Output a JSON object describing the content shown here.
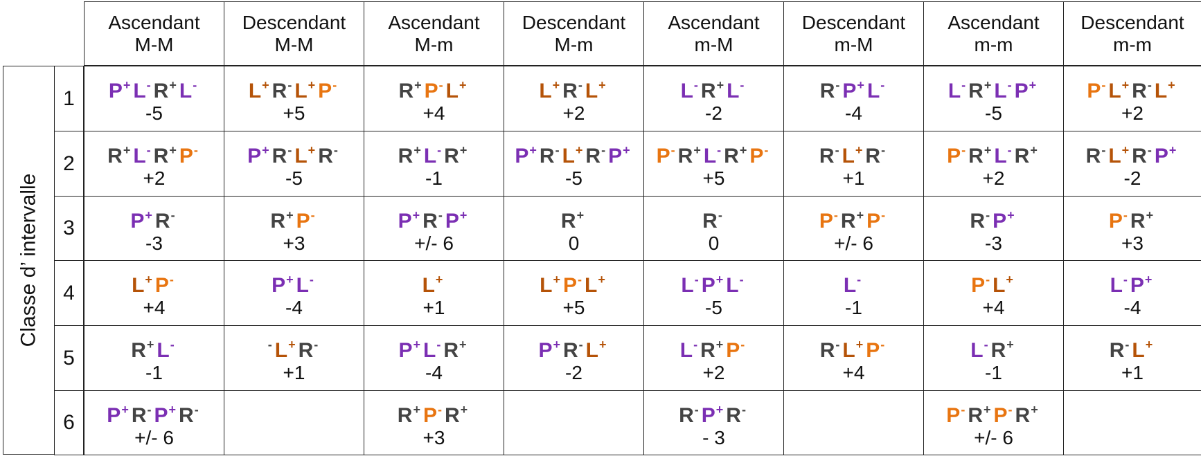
{
  "axis_label": "Classe d’ intervalle",
  "colors": {
    "P": "#7b2fb3",
    "L": "#b55308",
    "Lv": "#7b2fb3",
    "R": "#444444",
    "Po": "#e87511"
  },
  "headers": [
    {
      "line1": "Ascendant",
      "line2": "M-M"
    },
    {
      "line1": "Descendant",
      "line2": "M-M"
    },
    {
      "line1": "Ascendant",
      "line2": "M-m"
    },
    {
      "line1": "Descendant",
      "line2": "M-m"
    },
    {
      "line1": "Ascendant",
      "line2": "m-M"
    },
    {
      "line1": "Descendant",
      "line2": "m-M"
    },
    {
      "line1": "Ascendant",
      "line2": "m-m"
    },
    {
      "line1": "Descendant",
      "line2": "m-m"
    }
  ],
  "rows": [
    {
      "num": "1",
      "cells": [
        {
          "seq": [
            [
              "P",
              "+",
              "p"
            ],
            [
              "L",
              "-",
              "p"
            ],
            [
              "R",
              "+",
              "g"
            ],
            [
              "L",
              "-",
              "p"
            ]
          ],
          "val": "-5"
        },
        {
          "seq": [
            [
              "L",
              "+",
              "b"
            ],
            [
              "R",
              "-",
              "g"
            ],
            [
              "L",
              "+",
              "b"
            ],
            [
              "P",
              "-",
              "o"
            ]
          ],
          "val": "+5"
        },
        {
          "seq": [
            [
              "R",
              "+",
              "g"
            ],
            [
              "P",
              "-",
              "o"
            ],
            [
              "L",
              "+",
              "b"
            ]
          ],
          "val": "+4"
        },
        {
          "seq": [
            [
              "L",
              "+",
              "b"
            ],
            [
              "R",
              "-",
              "g"
            ],
            [
              "L",
              "+",
              "b"
            ]
          ],
          "val": "+2"
        },
        {
          "seq": [
            [
              "L",
              "-",
              "p"
            ],
            [
              "R",
              "+",
              "g"
            ],
            [
              "L",
              "-",
              "p"
            ]
          ],
          "val": "-2"
        },
        {
          "seq": [
            [
              "R",
              "-",
              "g"
            ],
            [
              "P",
              "+",
              "p"
            ],
            [
              "L",
              "-",
              "p"
            ]
          ],
          "val": "-4"
        },
        {
          "seq": [
            [
              "L",
              "-",
              "p"
            ],
            [
              "R",
              "+",
              "g"
            ],
            [
              "L",
              "-",
              "p"
            ],
            [
              "P",
              "+",
              "p"
            ]
          ],
          "val": "-5"
        },
        {
          "seq": [
            [
              "P",
              "-",
              "o"
            ],
            [
              "L",
              "+",
              "b"
            ],
            [
              "R",
              "-",
              "g"
            ],
            [
              "L",
              "+",
              "b"
            ]
          ],
          "val": "+2"
        }
      ]
    },
    {
      "num": "2",
      "cells": [
        {
          "seq": [
            [
              "R",
              "+",
              "g"
            ],
            [
              "L",
              "-",
              "p"
            ],
            [
              "R",
              "+",
              "g"
            ],
            [
              "P",
              "-",
              "o"
            ]
          ],
          "val": "+2"
        },
        {
          "seq": [
            [
              "P",
              "+",
              "p"
            ],
            [
              "R",
              "-",
              "g"
            ],
            [
              "L",
              "+",
              "b"
            ],
            [
              "R",
              "-",
              "g"
            ]
          ],
          "val": "-5"
        },
        {
          "seq": [
            [
              "R",
              "+",
              "g"
            ],
            [
              "L",
              "-",
              "p"
            ],
            [
              "R",
              "+",
              "g"
            ]
          ],
          "val": "-1"
        },
        {
          "seq": [
            [
              "P",
              "+",
              "p"
            ],
            [
              "R",
              "-",
              "g"
            ],
            [
              "L",
              "+",
              "b"
            ],
            [
              "R",
              "-",
              "g"
            ],
            [
              "P",
              "+",
              "p"
            ]
          ],
          "val": "-5"
        },
        {
          "seq": [
            [
              "P",
              "-",
              "o"
            ],
            [
              "R",
              "+",
              "g"
            ],
            [
              "L",
              "-",
              "p"
            ],
            [
              "R",
              "+",
              "g"
            ],
            [
              "P",
              "-",
              "o"
            ]
          ],
          "val": "+5"
        },
        {
          "seq": [
            [
              "R",
              "-",
              "g"
            ],
            [
              "L",
              "+",
              "b"
            ],
            [
              "R",
              "-",
              "g"
            ]
          ],
          "val": "+1"
        },
        {
          "seq": [
            [
              "P",
              "-",
              "o"
            ],
            [
              "R",
              "+",
              "g"
            ],
            [
              "L",
              "-",
              "p"
            ],
            [
              "R",
              "+",
              "g"
            ]
          ],
          "val": "+2"
        },
        {
          "seq": [
            [
              "R",
              "-",
              "g"
            ],
            [
              "L",
              "+",
              "b"
            ],
            [
              "R",
              "-",
              "g"
            ],
            [
              "P",
              "+",
              "p"
            ]
          ],
          "val": "-2"
        }
      ]
    },
    {
      "num": "3",
      "cells": [
        {
          "seq": [
            [
              "P",
              "+",
              "p"
            ],
            [
              "R",
              "-",
              "g"
            ]
          ],
          "val": "-3"
        },
        {
          "seq": [
            [
              "R",
              "+",
              "g"
            ],
            [
              "P",
              "-",
              "o"
            ]
          ],
          "val": "+3"
        },
        {
          "seq": [
            [
              "P",
              "+",
              "p"
            ],
            [
              "R",
              "-",
              "g"
            ],
            [
              "P",
              "+",
              "p"
            ]
          ],
          "val": "+/- 6"
        },
        {
          "seq": [
            [
              "R",
              "+",
              "g"
            ]
          ],
          "val": "0"
        },
        {
          "seq": [
            [
              "R",
              "-",
              "g"
            ]
          ],
          "val": "0"
        },
        {
          "seq": [
            [
              "P",
              "-",
              "o"
            ],
            [
              "R",
              "+",
              "g"
            ],
            [
              "P",
              "-",
              "o"
            ]
          ],
          "val": "+/- 6"
        },
        {
          "seq": [
            [
              "R",
              "-",
              "g"
            ],
            [
              "P",
              "+",
              "p"
            ]
          ],
          "val": "-3"
        },
        {
          "seq": [
            [
              "P",
              "-",
              "o"
            ],
            [
              "R",
              "+",
              "g"
            ]
          ],
          "val": "+3"
        }
      ]
    },
    {
      "num": "4",
      "cells": [
        {
          "seq": [
            [
              "L",
              "+",
              "b"
            ],
            [
              "P",
              "-",
              "o"
            ]
          ],
          "val": "+4"
        },
        {
          "seq": [
            [
              "P",
              "+",
              "p"
            ],
            [
              "L",
              "-",
              "p"
            ]
          ],
          "val": "-4"
        },
        {
          "seq": [
            [
              "L",
              "+",
              "b"
            ]
          ],
          "val": "+1"
        },
        {
          "seq": [
            [
              "L",
              "+",
              "b"
            ],
            [
              "P",
              "-",
              "o"
            ],
            [
              "L",
              "+",
              "b"
            ]
          ],
          "val": "+5"
        },
        {
          "seq": [
            [
              "L",
              "-",
              "p"
            ],
            [
              "P",
              "+",
              "p"
            ],
            [
              "L",
              "-",
              "p"
            ]
          ],
          "val": "-5"
        },
        {
          "seq": [
            [
              "L",
              "-",
              "p"
            ]
          ],
          "val": "-1"
        },
        {
          "seq": [
            [
              "P",
              "-",
              "o"
            ],
            [
              "L",
              "+",
              "b"
            ]
          ],
          "val": "+4"
        },
        {
          "seq": [
            [
              "L",
              "-",
              "p"
            ],
            [
              "P",
              "+",
              "p"
            ]
          ],
          "val": "-4"
        }
      ]
    },
    {
      "num": "5",
      "cells": [
        {
          "seq": [
            [
              "R",
              "+",
              "g"
            ],
            [
              "L",
              "-",
              "p"
            ]
          ],
          "val": "-1"
        },
        {
          "seq": [
            [
              "",
              "-",
              "g"
            ],
            [
              "L",
              "+",
              "b"
            ],
            [
              "R",
              "-",
              "g"
            ]
          ],
          "val": "+1"
        },
        {
          "seq": [
            [
              "P",
              "+",
              "p"
            ],
            [
              "L",
              "-",
              "p"
            ],
            [
              "R",
              "+",
              "g"
            ]
          ],
          "val": "-4"
        },
        {
          "seq": [
            [
              "P",
              "+",
              "p"
            ],
            [
              "R",
              "-",
              "g"
            ],
            [
              "L",
              "+",
              "b"
            ]
          ],
          "val": "-2"
        },
        {
          "seq": [
            [
              "L",
              "-",
              "p"
            ],
            [
              "R",
              "+",
              "g"
            ],
            [
              "P",
              "-",
              "o"
            ]
          ],
          "val": "+2"
        },
        {
          "seq": [
            [
              "R",
              "-",
              "g"
            ],
            [
              "L",
              "+",
              "b"
            ],
            [
              "P",
              "-",
              "o"
            ]
          ],
          "val": "+4"
        },
        {
          "seq": [
            [
              "L",
              "-",
              "p"
            ],
            [
              "R",
              "+",
              "g"
            ]
          ],
          "val": "-1"
        },
        {
          "seq": [
            [
              "R",
              "-",
              "g"
            ],
            [
              "L",
              "+",
              "b"
            ]
          ],
          "val": "+1"
        }
      ]
    },
    {
      "num": "6",
      "cells": [
        {
          "seq": [
            [
              "P",
              "+",
              "p"
            ],
            [
              "R",
              "-",
              "g"
            ],
            [
              "P",
              "+",
              "p"
            ],
            [
              "R",
              "-",
              "g"
            ]
          ],
          "val": "+/- 6"
        },
        {
          "seq": [],
          "val": ""
        },
        {
          "seq": [
            [
              "R",
              "+",
              "g"
            ],
            [
              "P",
              "-",
              "o"
            ],
            [
              "R",
              "+",
              "g"
            ]
          ],
          "val": "+3"
        },
        {
          "seq": [],
          "val": ""
        },
        {
          "seq": [
            [
              "R",
              "-",
              "g"
            ],
            [
              "P",
              "+",
              "p"
            ],
            [
              "R",
              "-",
              "g"
            ]
          ],
          "val": "- 3"
        },
        {
          "seq": [],
          "val": ""
        },
        {
          "seq": [
            [
              "P",
              "-",
              "o"
            ],
            [
              "R",
              "+",
              "g"
            ],
            [
              "P",
              "-",
              "o"
            ],
            [
              "R",
              "+",
              "g"
            ]
          ],
          "val": "+/- 6"
        },
        {
          "seq": [],
          "val": ""
        }
      ]
    }
  ]
}
